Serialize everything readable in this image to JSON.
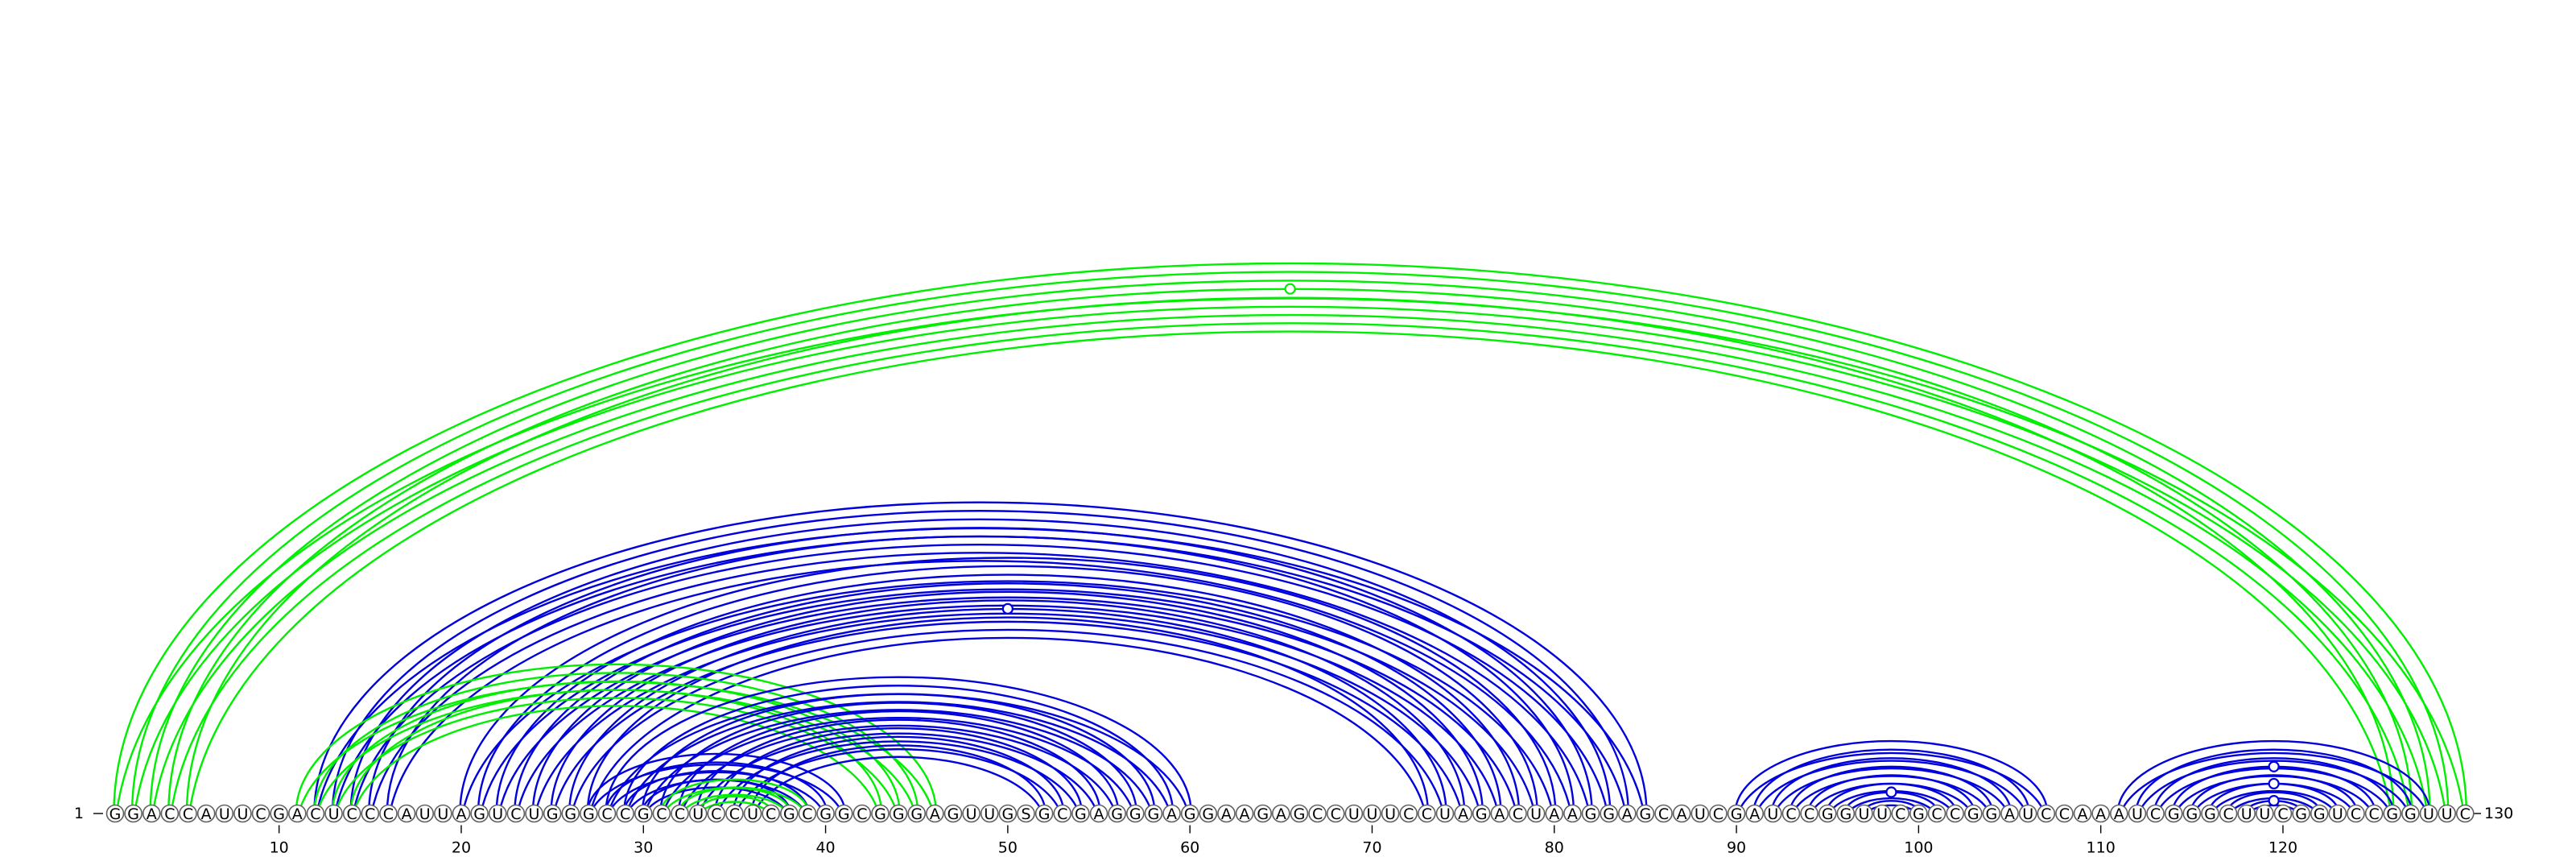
{
  "sequence": "GGACCAUUCGACUCCCAUUAGUCUGGGCCGCCUCCUCGCGGCGGGAGUUGSGCGAGGGAGGAAGAGCCUUUCCUAGACUAAGGAGCAUCGAUCCGGUUCGCCGGAUCCAAAUCGGGCUUCGGUCCGGUUC",
  "start_label": "1",
  "end_label": "130",
  "ticks": [
    10,
    20,
    30,
    40,
    50,
    60,
    70,
    80,
    90,
    100,
    110,
    120
  ],
  "colors": {
    "blue": "#0000dd",
    "green": "#00ee00",
    "nucleotide_outline": "#606060"
  },
  "arc_groups": [
    {
      "color": "green",
      "pairs": [
        [
          1,
          130
        ],
        [
          2,
          129
        ],
        [
          3,
          128
        ],
        [
          4,
          127
        ],
        [
          5,
          126
        ]
      ]
    },
    {
      "color": "blue",
      "pairs": [
        [
          12,
          85
        ],
        [
          13,
          84
        ],
        [
          14,
          83
        ],
        [
          15,
          82
        ],
        [
          16,
          81
        ],
        [
          20,
          80
        ],
        [
          21,
          79
        ],
        [
          22,
          78
        ],
        [
          23,
          77
        ],
        [
          24,
          76
        ],
        [
          25,
          75
        ],
        [
          26,
          74
        ],
        [
          27,
          73
        ]
      ]
    },
    {
      "color": "green",
      "pairs": [
        [
          11,
          46
        ],
        [
          12,
          45
        ],
        [
          13,
          44
        ],
        [
          14,
          43
        ]
      ]
    },
    {
      "color": "blue",
      "pairs": [
        [
          28,
          60
        ],
        [
          29,
          59
        ],
        [
          30,
          58
        ],
        [
          31,
          57
        ],
        [
          32,
          56
        ],
        [
          33,
          55
        ],
        [
          34,
          54
        ],
        [
          35,
          53
        ],
        [
          36,
          52
        ]
      ]
    },
    {
      "color": "blue",
      "pairs": [
        [
          27,
          41
        ],
        [
          28,
          40
        ],
        [
          29,
          39
        ],
        [
          30,
          38
        ]
      ]
    },
    {
      "color": "green",
      "pairs": [
        [
          31,
          39
        ],
        [
          32,
          38
        ],
        [
          33,
          37
        ]
      ]
    },
    {
      "color": "blue",
      "pairs": [
        [
          90,
          107
        ],
        [
          91,
          106
        ],
        [
          92,
          105
        ],
        [
          93,
          104
        ],
        [
          94,
          103
        ],
        [
          95,
          102
        ],
        [
          96,
          101
        ],
        [
          97,
          100
        ]
      ]
    },
    {
      "color": "blue",
      "pairs": [
        [
          111,
          128
        ],
        [
          112,
          127
        ],
        [
          113,
          126
        ],
        [
          114,
          125
        ],
        [
          115,
          124
        ],
        [
          116,
          123
        ],
        [
          117,
          122
        ],
        [
          118,
          121
        ]
      ]
    }
  ],
  "gu_markers": [
    {
      "pair": [
        4,
        127
      ],
      "color": "green"
    },
    {
      "pair": [
        26,
        74
      ],
      "color": "blue"
    },
    {
      "pair": [
        96,
        101
      ],
      "color": "blue"
    },
    {
      "pair": [
        114,
        125
      ],
      "color": "blue"
    },
    {
      "pair": [
        116,
        123
      ],
      "color": "blue"
    },
    {
      "pair": [
        118,
        121
      ],
      "color": "blue"
    }
  ]
}
